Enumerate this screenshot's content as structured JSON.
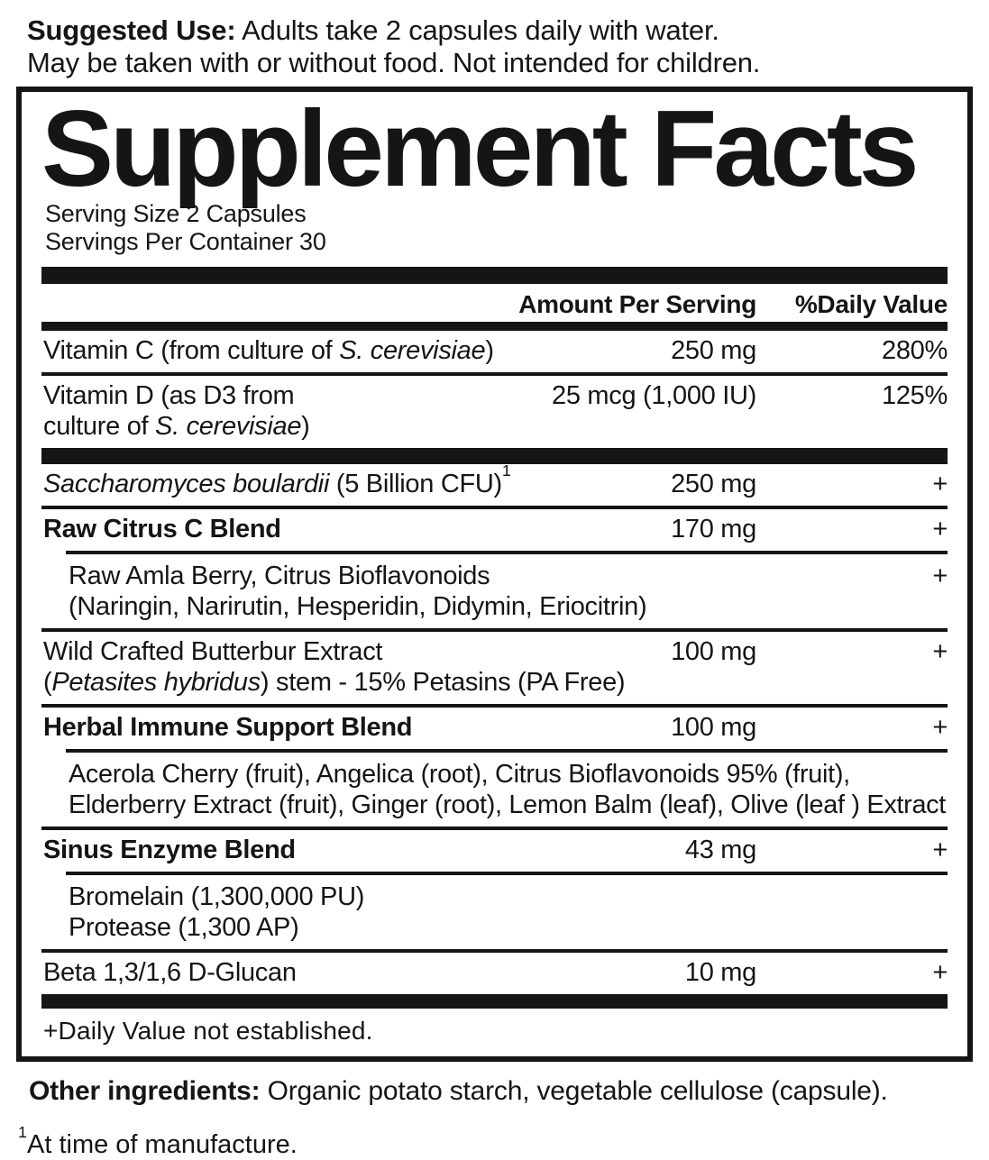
{
  "colors": {
    "ink": "#151515",
    "background": "#ffffff"
  },
  "suggested_use": {
    "label": "Suggested Use:",
    "line1_rest": " Adults take 2 capsules daily with water.",
    "line2": "May be taken with or without food. Not intended for children."
  },
  "panel": {
    "title": "Supplement Facts",
    "serving_size": "Serving Size 2 Capsules",
    "servings_per_container": "Servings Per Container 30",
    "columns": {
      "amount": "Amount Per Serving",
      "daily_value": "%Daily Value"
    },
    "rows": [
      {
        "name_segments": [
          {
            "t": "Vitamin C (from culture of "
          },
          {
            "t": "S. cerevisiae",
            "italic": true
          },
          {
            "t": ")"
          }
        ],
        "amount": "250 mg",
        "daily_value": "280%",
        "rule_above": "none",
        "bar_above": false,
        "bold": false,
        "indent": false
      },
      {
        "name_segments": [
          {
            "t": "Vitamin D (as D3 from\nculture of "
          },
          {
            "t": "S. cerevisiae",
            "italic": true
          },
          {
            "t": ")"
          }
        ],
        "amount": "25 mcg (1,000 IU)",
        "daily_value": "125%",
        "rule_above": "full",
        "bar_above": false,
        "bold": false,
        "indent": false
      },
      {
        "name_segments": [
          {
            "t": "Saccharomyces boulardii",
            "italic": true
          },
          {
            "t": " (5 Billion CFU)"
          },
          {
            "t": "1",
            "sup": true
          }
        ],
        "amount": "250 mg",
        "daily_value": "+",
        "rule_above": "none",
        "bar_above": true,
        "bold": false,
        "indent": false
      },
      {
        "name_segments": [
          {
            "t": "Raw Citrus C Blend"
          }
        ],
        "amount": "170 mg",
        "daily_value": "+",
        "rule_above": "full",
        "bar_above": false,
        "bold": true,
        "indent": false
      },
      {
        "name_segments": [
          {
            "t": "Raw Amla Berry, Citrus Bioflavonoids\n(Naringin, Narirutin, Hesperidin, Didymin, Eriocitrin)"
          }
        ],
        "amount": "",
        "daily_value": "+",
        "rule_above": "indent",
        "bar_above": false,
        "bold": false,
        "indent": true
      },
      {
        "name_segments": [
          {
            "t": "Wild Crafted Butterbur Extract\n("
          },
          {
            "t": "Petasites hybridus",
            "italic": true
          },
          {
            "t": ") stem - 15% Petasins (PA Free)"
          }
        ],
        "amount": "100 mg",
        "daily_value": "+",
        "rule_above": "full",
        "bar_above": false,
        "bold": false,
        "indent": false
      },
      {
        "name_segments": [
          {
            "t": "Herbal Immune Support Blend"
          }
        ],
        "amount": "100 mg",
        "daily_value": "+",
        "rule_above": "full",
        "bar_above": false,
        "bold": true,
        "indent": false
      },
      {
        "name_segments": [
          {
            "t": "Acerola Cherry (fruit), Angelica (root), Citrus Bioflavonoids 95% (fruit),\nElderberry Extract (fruit), Ginger (root), Lemon Balm (leaf), Olive (leaf ) Extract"
          }
        ],
        "amount": "",
        "daily_value": "",
        "rule_above": "indent",
        "bar_above": false,
        "bold": false,
        "indent": true
      },
      {
        "name_segments": [
          {
            "t": "Sinus Enzyme Blend"
          }
        ],
        "amount": "43 mg",
        "daily_value": "+",
        "rule_above": "full",
        "bar_above": false,
        "bold": true,
        "indent": false
      },
      {
        "name_segments": [
          {
            "t": "Bromelain (1,300,000 PU)\nProtease (1,300 AP)"
          }
        ],
        "amount": "",
        "daily_value": "",
        "rule_above": "indent",
        "bar_above": false,
        "bold": false,
        "indent": true
      },
      {
        "name_segments": [
          {
            "t": "Beta 1,3/1,6 D-Glucan"
          }
        ],
        "amount": "10 mg",
        "daily_value": "+",
        "rule_above": "full",
        "bar_above": false,
        "bold": false,
        "indent": false
      }
    ],
    "footnote": "+Daily Value not established."
  },
  "footer": {
    "other_ingredients_label": "Other ingredients:",
    "other_ingredients_text": " Organic potato starch, vegetable cellulose (capsule).",
    "manufacture_note_sup": "1",
    "manufacture_note_text": "At time of manufacture."
  }
}
